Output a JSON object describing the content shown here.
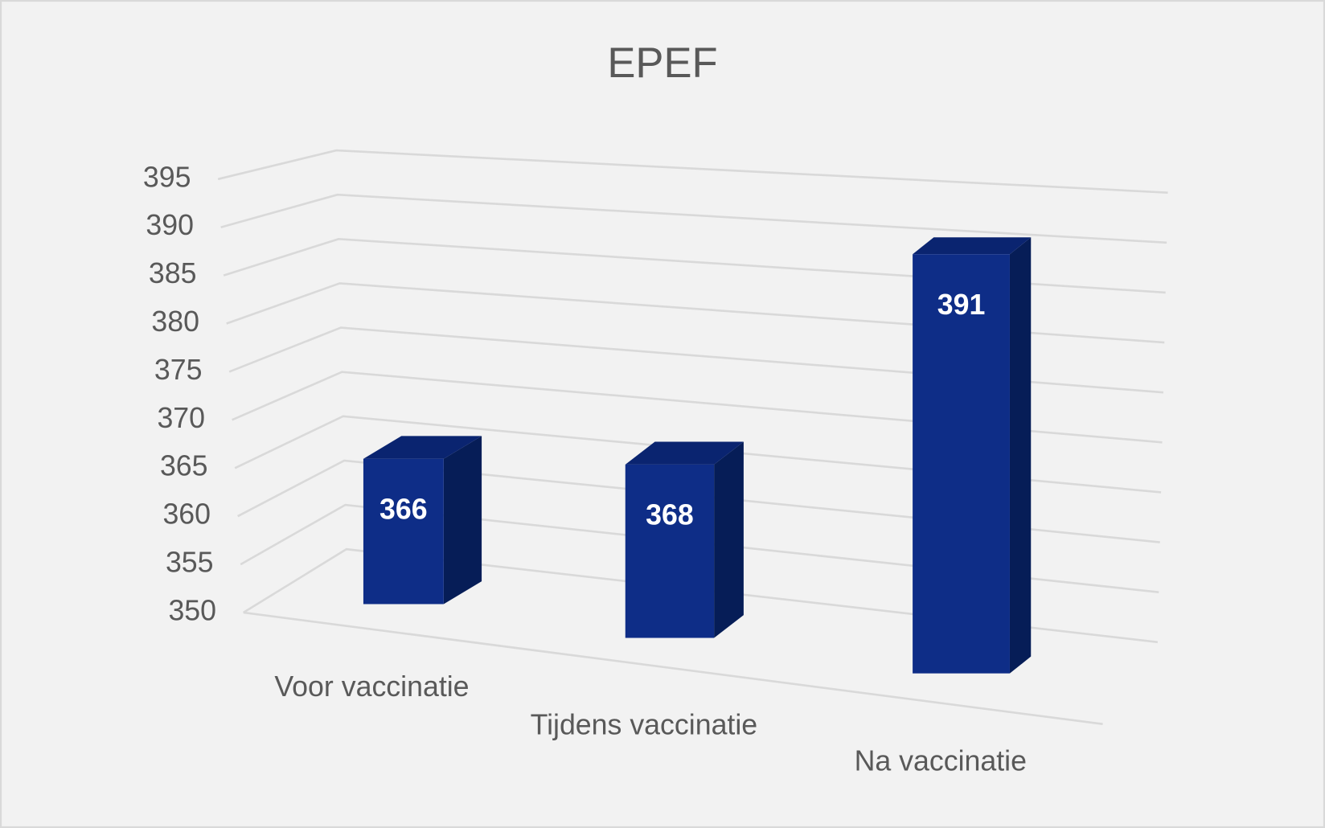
{
  "chart_data": {
    "type": "bar3d",
    "title": "EPEF",
    "categories": [
      "Voor vaccinatie",
      "Tijdens vaccinatie",
      "Na vaccinatie"
    ],
    "values": [
      366,
      368,
      391
    ],
    "color": "#0e2d87",
    "ylim": [
      350,
      395
    ],
    "yticks": [
      350,
      355,
      360,
      365,
      370,
      375,
      380,
      385,
      390,
      395
    ],
    "grid": true
  }
}
